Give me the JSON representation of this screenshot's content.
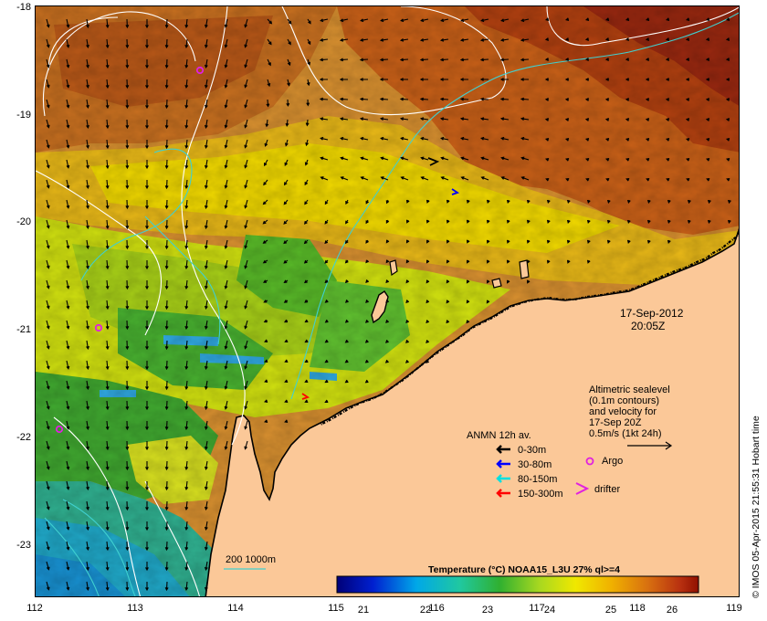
{
  "map": {
    "lat_labels": [
      "-18",
      "-19",
      "-20",
      "-21",
      "-22",
      "-23"
    ],
    "lon_labels": [
      "112",
      "113",
      "114",
      "115",
      "116",
      "117",
      "118",
      "119"
    ],
    "timestamp": {
      "date": "17-Sep-2012",
      "time": "20:05Z"
    },
    "altimetry": {
      "line1": "Altimetric sealevel",
      "line2": "(0.1m contours)",
      "line3": "and velocity for",
      "line4": "17-Sep 20Z",
      "scale": "0.5m/s (1kt 24h)"
    },
    "anmn": {
      "title": "ANMN 12h av.",
      "items": [
        {
          "label": "0-30m",
          "color": "#000000"
        },
        {
          "label": "30-80m",
          "color": "#0000ff"
        },
        {
          "label": "80-150m",
          "color": "#00e0e0"
        },
        {
          "label": "150-300m",
          "color": "#ff0000"
        }
      ]
    },
    "markers": {
      "argo": "Argo",
      "drifter": "drifter",
      "argo_color": "#e020e0"
    },
    "bathy": {
      "label": "200  1000m",
      "color": "#40d0d0"
    },
    "colorbar": {
      "title": "Temperature (°C) NOAA15_L3U 27% ql>=4",
      "ticks": [
        "21",
        "22",
        "23",
        "24",
        "25",
        "26"
      ]
    },
    "credit": "© IMOS 05-Apr-2015 21:55:31 Hobart time",
    "colors": {
      "land": "#fbc898",
      "coast": "#000000",
      "contour": "#ffffff"
    }
  }
}
